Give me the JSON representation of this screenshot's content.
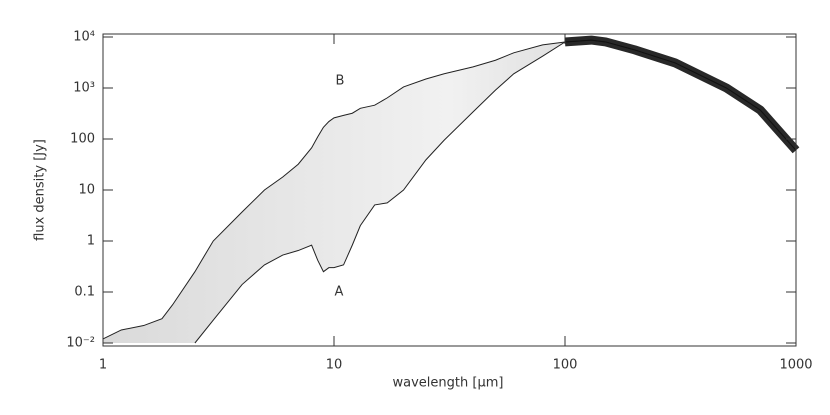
{
  "chart_data": {
    "type": "line",
    "xlabel": "wavelength [μm]",
    "ylabel": "flux density [Jy]",
    "x": [
      1,
      1.2,
      1.5,
      1.8,
      2,
      2.5,
      3,
      4,
      5,
      6,
      7,
      8,
      8.5,
      9,
      9.5,
      10,
      11,
      12,
      13,
      15,
      17,
      20,
      25,
      30,
      40,
      50,
      60,
      80,
      100,
      130,
      150,
      200,
      300,
      500,
      700,
      1000
    ],
    "series": [
      {
        "name": "B",
        "color": "#222222",
        "values": [
          0.012,
          0.018,
          0.022,
          0.03,
          0.056,
          0.25,
          1,
          3.7,
          10,
          18,
          32,
          67,
          110,
          170,
          220,
          260,
          290,
          320,
          400,
          460,
          640,
          1050,
          1500,
          1900,
          2600,
          3500,
          4900,
          7000,
          8000,
          8700,
          8000,
          5600,
          3100,
          1000,
          370,
          60
        ]
      },
      {
        "name": "A",
        "color": "#222222",
        "values": [
          null,
          null,
          null,
          null,
          null,
          0.01,
          0.028,
          0.14,
          0.34,
          0.53,
          0.65,
          0.83,
          0.42,
          0.25,
          0.3,
          0.3,
          0.34,
          0.83,
          2,
          5.1,
          5.6,
          10,
          39,
          95,
          340,
          910,
          1900,
          4200,
          8000,
          8700,
          8000,
          5600,
          3100,
          1000,
          370,
          60
        ]
      }
    ],
    "xlim": [
      1,
      1000
    ],
    "xticks": [
      1,
      10,
      100,
      1000
    ],
    "xscale": "log",
    "ylim": [
      0.01,
      10000
    ],
    "yscale": "log",
    "yticks": [
      {
        "value": 0.01,
        "label": "10⁻²"
      },
      0.1,
      1,
      10,
      100,
      {
        "value": 1000,
        "label": "10³"
      },
      {
        "value": 10000,
        "label": "10⁴"
      }
    ]
  }
}
